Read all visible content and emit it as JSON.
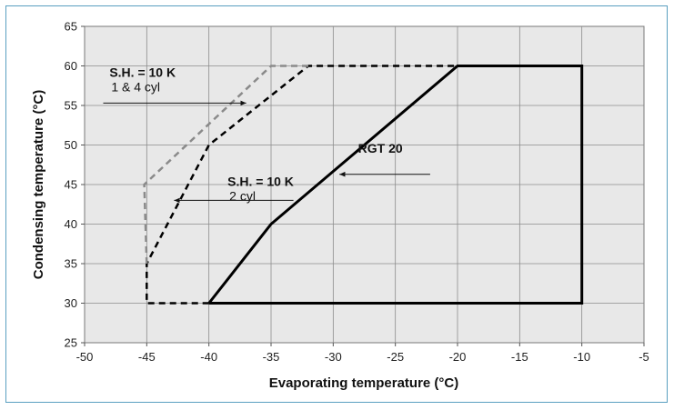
{
  "chart_data": {
    "type": "line",
    "xlabel": "Evaporating temperature (°C)",
    "ylabel": "Condensing temperature (°C)",
    "xlim": [
      -50,
      -5
    ],
    "ylim": [
      25,
      65
    ],
    "x_ticks": [
      -50,
      -45,
      -40,
      -35,
      -30,
      -25,
      -20,
      -15,
      -10,
      -5
    ],
    "y_ticks": [
      25,
      30,
      35,
      40,
      45,
      50,
      55,
      60,
      65
    ],
    "x_tick_labels": [
      "-50",
      "-45",
      "-40",
      "-35",
      "-30",
      "-25",
      "-20",
      "-15",
      "-10",
      "-5"
    ],
    "y_tick_labels": [
      "25",
      "30",
      "35",
      "40",
      "45",
      "50",
      "55",
      "60",
      "65"
    ],
    "grid": true,
    "series": [
      {
        "style": "solid-black",
        "color": "#000000",
        "points": [
          [
            -40,
            30
          ],
          [
            -35,
            40
          ],
          [
            -20,
            60
          ],
          [
            -10,
            60
          ],
          [
            -10,
            30
          ],
          [
            -40,
            30
          ]
        ]
      },
      {
        "style": "dashed-black",
        "color": "#000000",
        "points": [
          [
            -40,
            30
          ],
          [
            -45,
            30
          ],
          [
            -45,
            35
          ],
          [
            -40,
            50
          ],
          [
            -32,
            60
          ],
          [
            -20,
            60
          ]
        ]
      },
      {
        "style": "dashed-gray",
        "color": "#8a8a8a",
        "points": [
          [
            -45,
            35
          ],
          [
            -45.2,
            45
          ],
          [
            -35,
            60
          ],
          [
            -32,
            60
          ]
        ]
      }
    ],
    "annotations": [
      {
        "id": "rgt",
        "text": "RGT 20",
        "bold": true,
        "x": -28,
        "y": 49,
        "arrow_from": [
          -22.2,
          46.3
        ],
        "arrow_to": [
          -29.5,
          46.3
        ]
      },
      {
        "id": "sh2",
        "text": "S.H. = 10 K",
        "sub": "2 cyl",
        "bold": true,
        "x": -38.5,
        "y": 44.8,
        "arrow_from": [
          -33.2,
          43.0
        ],
        "arrow_to": [
          -42.8,
          43.0
        ]
      },
      {
        "id": "sh14",
        "text": "S.H. = 10 K",
        "sub": "1 & 4 cyl",
        "bold": true,
        "x": -48.0,
        "y": 58.6,
        "arrow_from": [
          -48.5,
          55.3
        ],
        "arrow_to": [
          -37.0,
          55.3
        ]
      }
    ]
  }
}
